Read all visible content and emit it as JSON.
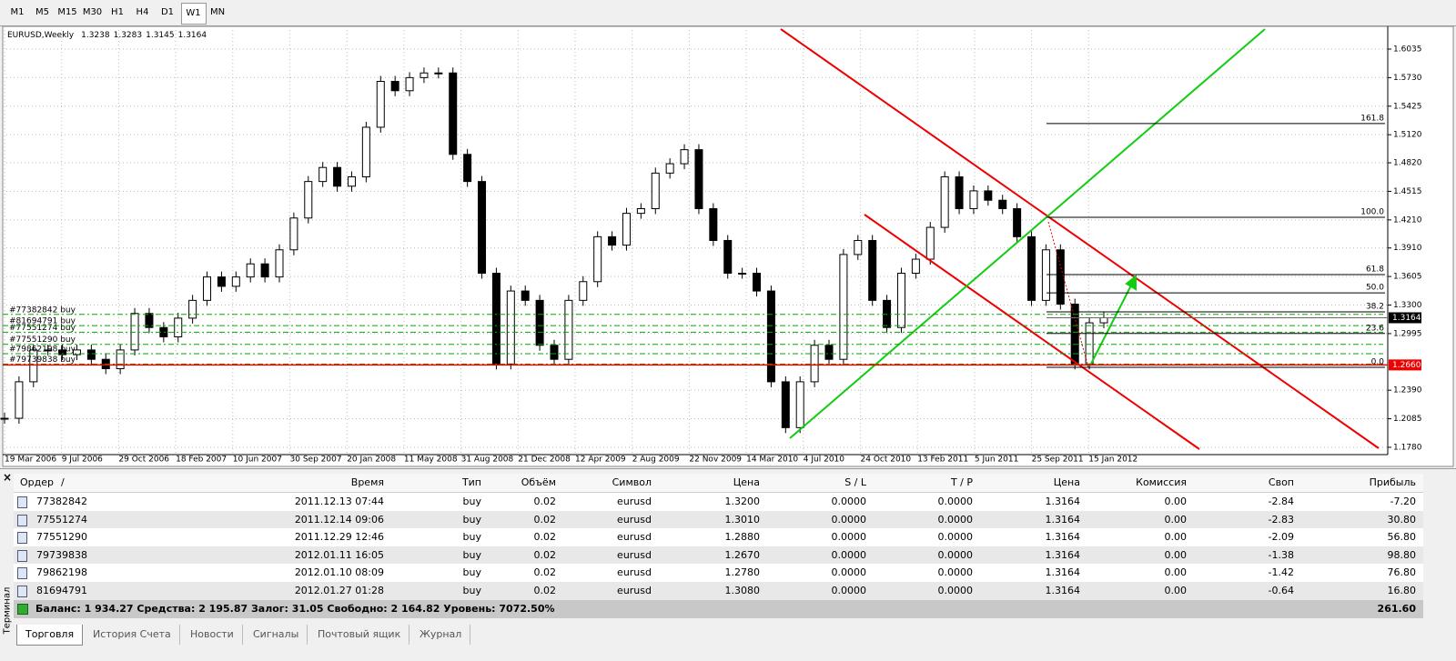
{
  "toolbar": {
    "timeframes": [
      "M1",
      "M5",
      "M15",
      "M30",
      "H1",
      "H4",
      "D1",
      "W1",
      "MN"
    ],
    "active": "W1"
  },
  "chart_data": {
    "type": "candlestick",
    "symbol": "EURUSD,Weekly",
    "ohlc": [
      "1.3238",
      "1.3283",
      "1.3145",
      "1.3164"
    ],
    "x_labels": [
      "19 Mar 2006",
      "9 Jul 2006",
      "29 Oct 2006",
      "18 Feb 2007",
      "10 Jun 2007",
      "30 Sep 2007",
      "20 Jan 2008",
      "11 May 2008",
      "31 Aug 2008",
      "21 Dec 2008",
      "12 Apr 2009",
      "2 Aug 2009",
      "22 Nov 2009",
      "14 Mar 2010",
      "4 Jul 2010",
      "24 Oct 2010",
      "13 Feb 2011",
      "5 Jun 2011",
      "25 Sep 2011",
      "15 Jan 2012"
    ],
    "closes": [
      1.209,
      1.248,
      1.282,
      1.282,
      1.277,
      1.282,
      1.272,
      1.262,
      1.282,
      1.321,
      1.306,
      1.296,
      1.316,
      1.335,
      1.36,
      1.35,
      1.36,
      1.374,
      1.36,
      1.389,
      1.423,
      1.462,
      1.477,
      1.457,
      1.467,
      1.52,
      1.569,
      1.559,
      1.573,
      1.578,
      1.578,
      1.491,
      1.462,
      1.364,
      1.267,
      1.345,
      1.335,
      1.287,
      1.272,
      1.335,
      1.355,
      1.403,
      1.394,
      1.428,
      1.433,
      1.471,
      1.481,
      1.496,
      1.433,
      1.399,
      1.364,
      1.364,
      1.345,
      1.248,
      1.199,
      1.248,
      1.287,
      1.272,
      1.384,
      1.399,
      1.335,
      1.306,
      1.364,
      1.379,
      1.413,
      1.467,
      1.433,
      1.452,
      1.442,
      1.433,
      1.403,
      1.335,
      1.389,
      1.331,
      1.267,
      1.311,
      1.3164
    ],
    "ylim": [
      1.1731,
      1.6268
    ],
    "yticks": [
      {
        "value": 1.6035,
        "label": "1.6035"
      },
      {
        "value": 1.573,
        "label": "1.5730"
      },
      {
        "value": 1.5425,
        "label": "1.5425"
      },
      {
        "value": 1.512,
        "label": "1.5120"
      },
      {
        "value": 1.482,
        "label": "1.4820"
      },
      {
        "value": 1.4515,
        "label": "1.4515"
      },
      {
        "value": 1.421,
        "label": "1.4210"
      },
      {
        "value": 1.391,
        "label": "1.3910"
      },
      {
        "value": 1.3605,
        "label": "1.3605"
      },
      {
        "value": 1.33,
        "label": "1.3300"
      },
      {
        "value": 1.2995,
        "label": "1.2995"
      },
      {
        "value": 1.239,
        "label": "1.2390"
      },
      {
        "value": 1.2085,
        "label": "1.2085"
      },
      {
        "value": 1.178,
        "label": "1.1780"
      }
    ],
    "grid": true,
    "current_price": {
      "value": 1.3164,
      "label": "1.3164"
    },
    "stop_level": {
      "value": 1.266,
      "label": "1.2660"
    },
    "fib_levels": [
      {
        "label": "161.8",
        "price": 1.524
      },
      {
        "label": "100.0",
        "price": 1.4238
      },
      {
        "label": "61.8",
        "price": 1.3626
      },
      {
        "label": "50.0",
        "price": 1.343
      },
      {
        "label": "38.2",
        "price": 1.3227
      },
      {
        "label": "23.6",
        "price": 1.2996
      },
      {
        "label": "0.0",
        "price": 1.2635
      }
    ],
    "order_labels": [
      "#77382842 buy",
      "#77551274 buy",
      "#77551290 buy",
      "#79739838 buy",
      "#79862198 buy",
      "#81694791 buy"
    ]
  },
  "terminal": {
    "title": "Терминал",
    "columns": [
      "Ордер",
      "/",
      "Время",
      "Тип",
      "Объём",
      "Символ",
      "Цена",
      "S / L",
      "T / P",
      "Цена",
      "Комиссия",
      "Своп",
      "Прибыль"
    ],
    "rows": [
      [
        "77382842",
        "2011.12.13 07:44",
        "buy",
        "0.02",
        "eurusd",
        "1.3200",
        "0.0000",
        "0.0000",
        "1.3164",
        "0.00",
        "-2.84",
        "-7.20"
      ],
      [
        "77551274",
        "2011.12.14 09:06",
        "buy",
        "0.02",
        "eurusd",
        "1.3010",
        "0.0000",
        "0.0000",
        "1.3164",
        "0.00",
        "-2.83",
        "30.80"
      ],
      [
        "77551290",
        "2011.12.29 12:46",
        "buy",
        "0.02",
        "eurusd",
        "1.2880",
        "0.0000",
        "0.0000",
        "1.3164",
        "0.00",
        "-2.09",
        "56.80"
      ],
      [
        "79739838",
        "2012.01.11 16:05",
        "buy",
        "0.02",
        "eurusd",
        "1.2670",
        "0.0000",
        "0.0000",
        "1.3164",
        "0.00",
        "-1.38",
        "98.80"
      ],
      [
        "79862198",
        "2012.01.10 08:09",
        "buy",
        "0.02",
        "eurusd",
        "1.2780",
        "0.0000",
        "0.0000",
        "1.3164",
        "0.00",
        "-1.42",
        "76.80"
      ],
      [
        "81694791",
        "2012.01.27 01:28",
        "buy",
        "0.02",
        "eurusd",
        "1.3080",
        "0.0000",
        "0.0000",
        "1.3164",
        "0.00",
        "-0.64",
        "16.80"
      ]
    ],
    "summary": "Баланс: 1 934.27  Средства: 2 195.87  Залог: 31.05  Свободно: 2 164.82  Уровень: 7072.50%",
    "total_profit": "261.60",
    "tabs": [
      "Торговля",
      "История Счета",
      "Новости",
      "Сигналы",
      "Почтовый ящик",
      "Журнал"
    ],
    "active_tab": "Торговля"
  }
}
